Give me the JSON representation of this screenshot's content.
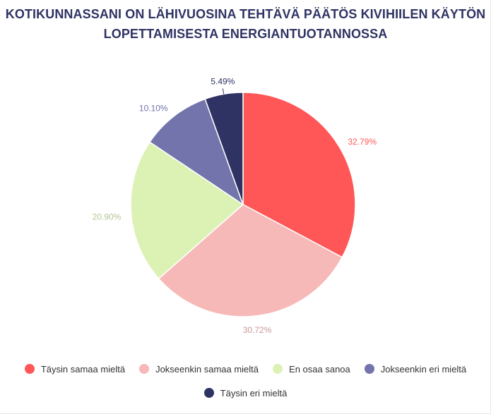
{
  "chart_data": {
    "type": "pie",
    "title_lines": [
      "KOTIKUNNASSANI ON LÄHIVUOSINA TEHTÄVÄ PÄÄTÖS KIVIHIILEN KÄYTÖN",
      "LOPETTAMISESTA ENERGIANTUOTANNOSSA"
    ],
    "slices": [
      {
        "name": "Täysin samaa mieltä",
        "value": 32.79,
        "label": "32.79%",
        "color": "#ff5757"
      },
      {
        "name": "Jokseenkin samaa mieltä",
        "value": 30.72,
        "label": "30.72%",
        "color": "#f7b8b8"
      },
      {
        "name": "En osaa sanoa",
        "value": 20.9,
        "label": "20.90%",
        "color": "#dcf2b4"
      },
      {
        "name": "Jokseenkin eri mieltä",
        "value": 10.1,
        "label": "10.10%",
        "color": "#7274ab"
      },
      {
        "name": "Täysin eri mieltä",
        "value": 5.49,
        "label": "5.49%",
        "color": "#2f3363"
      }
    ],
    "legend_position": "bottom",
    "title_color": "#2f3363"
  }
}
